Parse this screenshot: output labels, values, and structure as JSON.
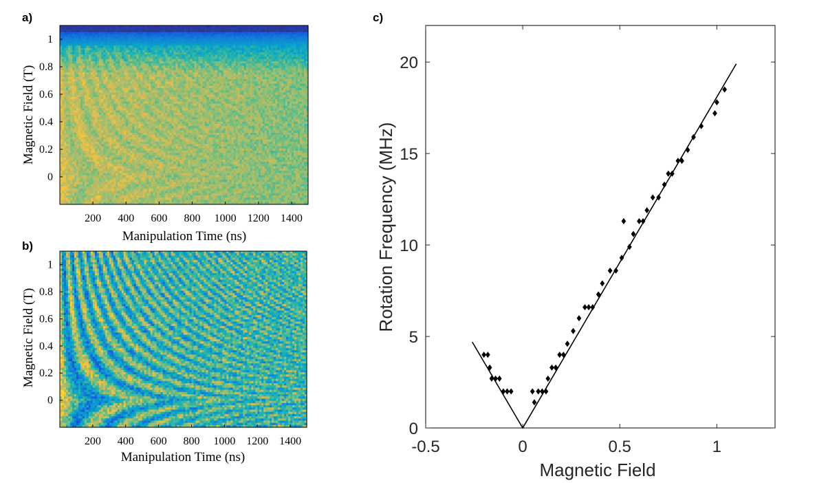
{
  "figure_labels": {
    "a": "a)",
    "b": "b)",
    "c": "c)"
  },
  "colormap": [
    "#352a87",
    "#0f5cdd",
    "#1481d6",
    "#06a4ca",
    "#2eb7a4",
    "#87bf77",
    "#d1bb59",
    "#fec832",
    "#f9fb0e"
  ],
  "chart_data": [
    {
      "id": "a",
      "type": "heatmap",
      "xlabel": "Manipulation Time (ns)",
      "ylabel": "Magnetic Field (T)",
      "xticks": [
        "200",
        "400",
        "600",
        "800",
        "1000",
        "1200",
        "1400"
      ],
      "yticks": [
        "1",
        "0.8",
        "0.6",
        "0.4",
        "0.2",
        "0"
      ],
      "xlim": [
        0,
        1500
      ],
      "ylim": [
        -0.2,
        1.1
      ]
    },
    {
      "id": "b",
      "type": "heatmap",
      "xlabel": "Manipulation Time (ns)",
      "ylabel": "Magnetic Field (T)",
      "xticks": [
        "200",
        "400",
        "600",
        "800",
        "1000",
        "1200",
        "1400"
      ],
      "yticks": [
        "1",
        "0.8",
        "0.6",
        "0.4",
        "0.2",
        "0"
      ],
      "xlim": [
        0,
        1500
      ],
      "ylim": [
        -0.2,
        1.1
      ]
    },
    {
      "id": "c",
      "type": "scatter",
      "xlabel": "Magnetic Field",
      "ylabel": "Rotation Frequency (MHz)",
      "xlim": [
        -0.5,
        1.3
      ],
      "ylim": [
        0,
        22
      ],
      "xticks": [
        "-0.5",
        "0",
        "0.5",
        "1"
      ],
      "yticks": [
        "0",
        "5",
        "10",
        "15",
        "20"
      ],
      "fit_line": [
        [
          -0.26,
          4.7
        ],
        [
          0,
          0
        ],
        [
          1.1,
          19.9
        ]
      ],
      "points": [
        [
          -0.2,
          4.0
        ],
        [
          -0.18,
          4.0
        ],
        [
          -0.17,
          3.3
        ],
        [
          -0.16,
          2.7
        ],
        [
          -0.14,
          2.7
        ],
        [
          -0.12,
          2.7
        ],
        [
          -0.1,
          2.0
        ],
        [
          -0.08,
          2.0
        ],
        [
          -0.06,
          2.0
        ],
        [
          0.05,
          2.0
        ],
        [
          0.06,
          1.4
        ],
        [
          0.08,
          2.0
        ],
        [
          0.1,
          2.0
        ],
        [
          0.12,
          2.0
        ],
        [
          0.13,
          2.7
        ],
        [
          0.15,
          3.3
        ],
        [
          0.17,
          3.3
        ],
        [
          0.19,
          4.0
        ],
        [
          0.21,
          4.0
        ],
        [
          0.23,
          4.6
        ],
        [
          0.26,
          5.3
        ],
        [
          0.29,
          6.0
        ],
        [
          0.32,
          6.6
        ],
        [
          0.34,
          6.6
        ],
        [
          0.36,
          6.6
        ],
        [
          0.39,
          7.3
        ],
        [
          0.41,
          7.9
        ],
        [
          0.45,
          8.6
        ],
        [
          0.48,
          8.6
        ],
        [
          0.51,
          9.3
        ],
        [
          0.52,
          11.3
        ],
        [
          0.55,
          9.9
        ],
        [
          0.57,
          10.6
        ],
        [
          0.6,
          11.3
        ],
        [
          0.62,
          11.3
        ],
        [
          0.64,
          11.9
        ],
        [
          0.67,
          12.6
        ],
        [
          0.7,
          12.6
        ],
        [
          0.73,
          13.3
        ],
        [
          0.75,
          13.9
        ],
        [
          0.77,
          13.9
        ],
        [
          0.8,
          14.6
        ],
        [
          0.82,
          14.6
        ],
        [
          0.85,
          15.2
        ],
        [
          0.88,
          15.9
        ],
        [
          0.92,
          16.5
        ],
        [
          0.99,
          17.2
        ],
        [
          1.0,
          17.8
        ],
        [
          1.04,
          18.5
        ]
      ]
    }
  ]
}
